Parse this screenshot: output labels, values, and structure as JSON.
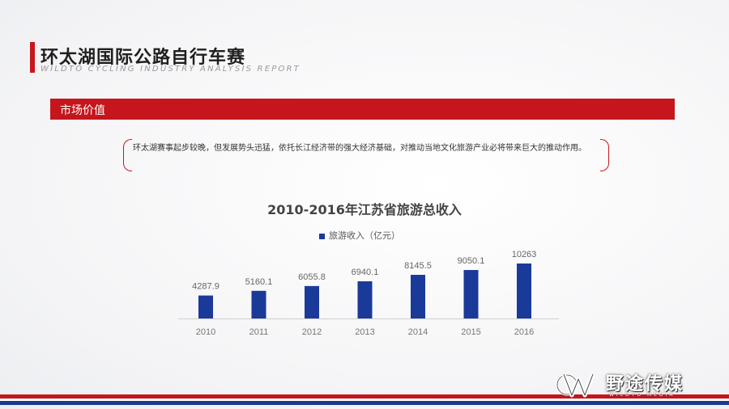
{
  "header": {
    "title": "环太湖国际公路自行车赛",
    "subtitle": "WILDTO CYCLING INDUSTRY ANALYSIS REPORT"
  },
  "section": {
    "label": "市场价值"
  },
  "description": "环太湖赛事起步较晚，但发展势头迅猛，依托长江经济带的强大经济基础，对推动当地文化旅游产业必将带来巨大的推动作用。",
  "chart_data": {
    "type": "bar",
    "title": "2010-2016年江苏省旅游总收入",
    "categories": [
      "2010",
      "2011",
      "2012",
      "2013",
      "2014",
      "2015",
      "2016"
    ],
    "series": [
      {
        "name": "旅游收入（亿元）",
        "values": [
          4287.9,
          5160.1,
          6055.8,
          6940.1,
          8145.5,
          9050.1,
          10263
        ]
      }
    ],
    "data_labels": [
      "4287.9",
      "5160.1",
      "6055.8",
      "6940.1",
      "8145.5",
      "9050.1",
      "10263"
    ],
    "bar_color": "#1a3a9a",
    "legend_position": "top",
    "grid": false
  },
  "logo": {
    "name": "野途传媒",
    "sub": "WILDTO MEDIA"
  },
  "colors": {
    "accent": "#c4161c",
    "stripe_blue": "#1a3a8c"
  }
}
